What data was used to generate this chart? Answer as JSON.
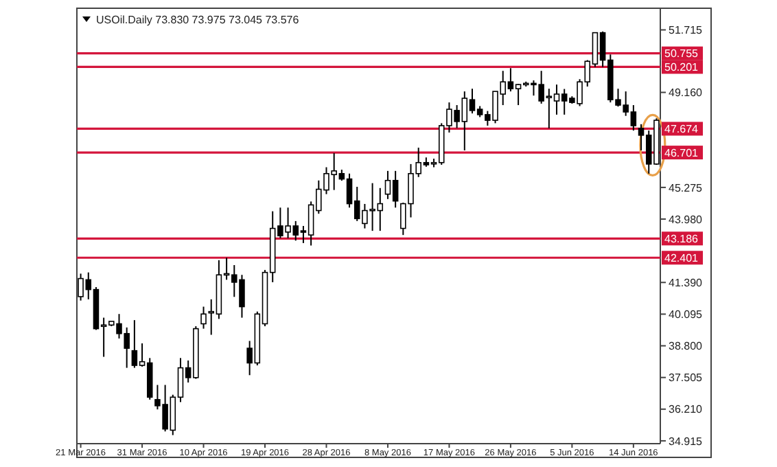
{
  "chart_data": {
    "type": "candlestick",
    "title": "USOil.Daily  73.830 73.975 73.045 73.576",
    "categories": [
      "21 Mar 2016",
      null,
      null,
      null,
      null,
      null,
      null,
      null,
      "31 Mar 2016",
      null,
      null,
      null,
      null,
      null,
      null,
      null,
      "10 Apr 2016",
      null,
      null,
      null,
      null,
      null,
      null,
      null,
      "19 Apr 2016",
      null,
      null,
      null,
      null,
      null,
      null,
      null,
      "28 Apr 2016",
      null,
      null,
      null,
      null,
      null,
      null,
      null,
      "8 May 2016",
      null,
      null,
      null,
      null,
      null,
      null,
      null,
      "17 May 2016",
      null,
      null,
      null,
      null,
      null,
      null,
      null,
      "26 May 2016",
      null,
      null,
      null,
      null,
      null,
      null,
      null,
      "5 Jun 2016",
      null,
      null,
      null,
      null,
      null,
      null,
      null,
      "14 Jun 2016",
      null,
      null,
      null
    ],
    "ohlc": [
      [
        40.81,
        41.75,
        40.65,
        41.55
      ],
      [
        41.5,
        41.8,
        40.7,
        41.1
      ],
      [
        41.1,
        41.2,
        39.45,
        39.5
      ],
      [
        39.6,
        39.95,
        38.35,
        39.65
      ],
      [
        39.65,
        39.8,
        39.6,
        39.8
      ],
      [
        39.7,
        40.1,
        39.1,
        39.3
      ],
      [
        39.3,
        39.55,
        37.9,
        38.7
      ],
      [
        38.6,
        39.85,
        37.9,
        38.0
      ],
      [
        38.0,
        38.9,
        37.95,
        38.15
      ],
      [
        38.1,
        38.3,
        36.6,
        36.7
      ],
      [
        36.6,
        37.2,
        36.2,
        36.35
      ],
      [
        36.4,
        37.2,
        35.3,
        35.4
      ],
      [
        35.35,
        36.8,
        35.15,
        36.7
      ],
      [
        36.7,
        38.3,
        36.5,
        37.9
      ],
      [
        37.9,
        38.2,
        37.3,
        37.5
      ],
      [
        37.5,
        39.6,
        37.45,
        39.5
      ],
      [
        39.7,
        40.4,
        39.5,
        40.1
      ],
      [
        40.15,
        40.7,
        39.25,
        40.2
      ],
      [
        40.1,
        42.3,
        39.9,
        41.7
      ],
      [
        41.7,
        42.4,
        41.5,
        41.75
      ],
      [
        41.7,
        42.1,
        40.8,
        41.4
      ],
      [
        41.5,
        41.7,
        39.95,
        40.4
      ],
      [
        38.7,
        39.0,
        37.6,
        38.1
      ],
      [
        38.1,
        40.2,
        38.0,
        40.1
      ],
      [
        39.7,
        41.9,
        39.6,
        41.8
      ],
      [
        41.8,
        44.3,
        41.4,
        43.6
      ],
      [
        43.7,
        44.45,
        43.2,
        43.3
      ],
      [
        43.45,
        44.45,
        43.2,
        43.7
      ],
      [
        43.7,
        43.9,
        43.1,
        43.33
      ],
      [
        43.5,
        43.7,
        43.0,
        43.45
      ],
      [
        43.33,
        44.7,
        42.9,
        44.56
      ],
      [
        44.33,
        45.56,
        44.2,
        45.2
      ],
      [
        45.17,
        46.1,
        45.0,
        45.84
      ],
      [
        45.8,
        46.68,
        45.17,
        45.95
      ],
      [
        45.84,
        46.0,
        45.55,
        45.62
      ],
      [
        45.62,
        45.84,
        44.45,
        44.61
      ],
      [
        44.72,
        45.3,
        43.9,
        44.0
      ],
      [
        43.8,
        44.6,
        43.6,
        44.33
      ],
      [
        44.33,
        45.45,
        43.5,
        44.38
      ],
      [
        44.33,
        45.25,
        43.5,
        44.61
      ],
      [
        45.0,
        45.95,
        44.8,
        45.56
      ],
      [
        45.56,
        45.95,
        44.45,
        44.72
      ],
      [
        43.6,
        44.65,
        43.33,
        44.61
      ],
      [
        44.61,
        46.23,
        44.05,
        45.84
      ],
      [
        45.84,
        46.9,
        45.7,
        46.29
      ],
      [
        46.29,
        46.5,
        46.12,
        46.2
      ],
      [
        46.25,
        46.45,
        46.1,
        46.29
      ],
      [
        46.29,
        47.9,
        46.2,
        47.8
      ],
      [
        47.8,
        48.75,
        47.52,
        48.47
      ],
      [
        48.42,
        48.64,
        47.7,
        47.97
      ],
      [
        47.97,
        49.2,
        46.79,
        48.92
      ],
      [
        48.86,
        49.31,
        48.3,
        48.42
      ],
      [
        48.47,
        48.6,
        48.15,
        48.25
      ],
      [
        48.25,
        48.4,
        47.8,
        48.02
      ],
      [
        48.02,
        49.2,
        47.9,
        49.2
      ],
      [
        49.09,
        50.04,
        48.64,
        49.59
      ],
      [
        49.59,
        50.15,
        49.2,
        49.31
      ],
      [
        49.31,
        49.5,
        48.64,
        49.48
      ],
      [
        49.5,
        49.6,
        49.4,
        49.53
      ],
      [
        49.53,
        49.65,
        49.03,
        49.48
      ],
      [
        49.48,
        50.04,
        48.7,
        48.81
      ],
      [
        48.95,
        49.31,
        47.69,
        49.0
      ],
      [
        48.81,
        49.48,
        48.25,
        49.09
      ],
      [
        49.09,
        49.3,
        48.25,
        48.81
      ],
      [
        48.92,
        49.0,
        48.7,
        48.75
      ],
      [
        48.7,
        49.7,
        48.6,
        49.59
      ],
      [
        49.59,
        50.48,
        49.4,
        50.43
      ],
      [
        50.32,
        51.6,
        50.2,
        51.6
      ],
      [
        51.6,
        51.65,
        50.2,
        50.48
      ],
      [
        50.48,
        50.71,
        48.75,
        48.86
      ],
      [
        48.86,
        49.31,
        48.58,
        48.64
      ],
      [
        48.64,
        49.2,
        48.2,
        48.36
      ],
      [
        48.36,
        48.64,
        47.6,
        47.8
      ],
      [
        47.69,
        47.86,
        46.79,
        47.41
      ],
      [
        47.41,
        47.6,
        45.84,
        46.23
      ],
      [
        46.23,
        48.1,
        46.2,
        48.02
      ]
    ],
    "ylim": [
      34.8,
      52.6
    ],
    "yticks": [
      51.715,
      {
        "value": 49.16,
        "label": "49.160"
      },
      45.275,
      {
        "value": 43.98,
        "label": "43.980"
      },
      {
        "value": 41.39,
        "label": "41.390"
      },
      40.095,
      {
        "value": 38.8,
        "label": "38.800"
      },
      37.505,
      {
        "value": 36.21,
        "label": "36.210"
      },
      34.915
    ],
    "ref_lines": [
      {
        "axis": "y",
        "value": 50.755,
        "label": "50.755",
        "color": "#d4163c"
      },
      {
        "axis": "y",
        "value": 50.201,
        "label": "50.201",
        "color": "#d4163c"
      },
      {
        "axis": "y",
        "value": 47.674,
        "label": "47.674",
        "color": "#d4163c"
      },
      {
        "axis": "y",
        "value": 46.701,
        "label": "46.701",
        "color": "#d4163c"
      },
      {
        "axis": "y",
        "value": 43.186,
        "label": "43.186",
        "color": "#d4163c"
      },
      {
        "axis": "y",
        "value": 42.401,
        "label": "42.401",
        "color": "#d4163c"
      }
    ],
    "grid": false
  }
}
